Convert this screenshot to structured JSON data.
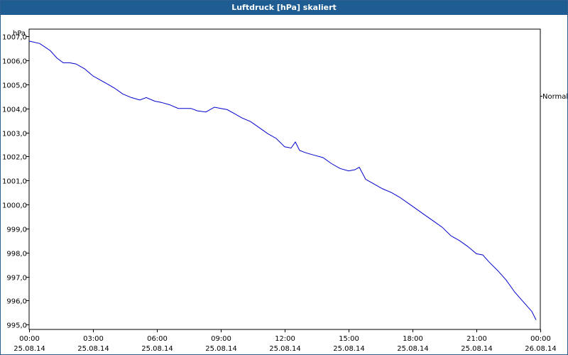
{
  "window": {
    "title": "Luftdruck [hPa] skaliert"
  },
  "colors": {
    "titlebar": "#1e5c92",
    "series": "#0000cc",
    "grid": "#000000"
  },
  "chart_data": {
    "type": "line",
    "title": "Luftdruck [hPa] skaliert",
    "ylabel": "hPa",
    "ylim": [
      994.8,
      1007.3
    ],
    "grid": true,
    "y_ticks": [
      "1007,0",
      "1006,0",
      "1005,0",
      "1004,0",
      "1003,0",
      "1002,0",
      "1001,0",
      "1000,0",
      "999,0",
      "998,0",
      "997,0",
      "996,0",
      "995,0"
    ],
    "y_tick_values": [
      1007,
      1006,
      1005,
      1004,
      1003,
      1002,
      1001,
      1000,
      999,
      998,
      997,
      996,
      995
    ],
    "x_ticks": [
      {
        "time": "00:00",
        "date": "25.08.14"
      },
      {
        "time": "03:00",
        "date": "25.08.14"
      },
      {
        "time": "06:00",
        "date": "25.08.14"
      },
      {
        "time": "09:00",
        "date": "25.08.14"
      },
      {
        "time": "12:00",
        "date": "25.08.14"
      },
      {
        "time": "15:00",
        "date": "25.08.14"
      },
      {
        "time": "18:00",
        "date": "25.08.14"
      },
      {
        "time": "21:00",
        "date": "25.08.14"
      },
      {
        "time": "00:00",
        "date": "26.08.14"
      }
    ],
    "x_unit": "hours since 00:00 25.08.14",
    "xlim": [
      0,
      24
    ],
    "reference_label": "Normal",
    "series": [
      {
        "x": [
          0,
          0.5,
          1,
          1.3,
          1.6,
          1.9,
          2.2,
          2.6,
          3,
          3.3,
          3.6,
          4,
          4.4,
          4.8,
          5.2,
          5.5,
          5.9,
          6.2,
          6.6,
          7,
          7.3,
          7.6,
          7.9,
          8.3,
          8.7,
          9,
          9.3,
          9.7,
          10,
          10.4,
          10.8,
          11.2,
          11.6,
          12,
          12.3,
          12.5,
          12.7,
          13,
          13.4,
          13.8,
          14.2,
          14.6,
          15,
          15.3,
          15.5,
          15.8,
          16.2,
          16.6,
          17,
          17.4,
          17.8,
          18.2,
          18.6,
          19,
          19.4,
          19.8,
          20.2,
          20.6,
          21,
          21.3,
          21.6,
          22,
          22.4,
          22.8,
          23.2,
          23.6,
          23.8
        ],
        "y": [
          1006.8,
          1006.7,
          1006.4,
          1006.1,
          1005.9,
          1005.9,
          1005.85,
          1005.65,
          1005.35,
          1005.2,
          1005.05,
          1004.85,
          1004.6,
          1004.45,
          1004.35,
          1004.45,
          1004.3,
          1004.25,
          1004.15,
          1004.0,
          1004.0,
          1004.0,
          1003.9,
          1003.85,
          1004.05,
          1004.0,
          1003.95,
          1003.75,
          1003.6,
          1003.45,
          1003.2,
          1002.95,
          1002.75,
          1002.4,
          1002.35,
          1002.6,
          1002.25,
          1002.15,
          1002.05,
          1001.95,
          1001.7,
          1001.5,
          1001.4,
          1001.45,
          1001.55,
          1001.05,
          1000.85,
          1000.65,
          1000.5,
          1000.3,
          1000.05,
          999.8,
          999.55,
          999.3,
          999.05,
          998.7,
          998.5,
          998.25,
          997.95,
          997.9,
          997.6,
          997.25,
          996.85,
          996.35,
          995.95,
          995.55,
          995.2
        ]
      }
    ]
  }
}
